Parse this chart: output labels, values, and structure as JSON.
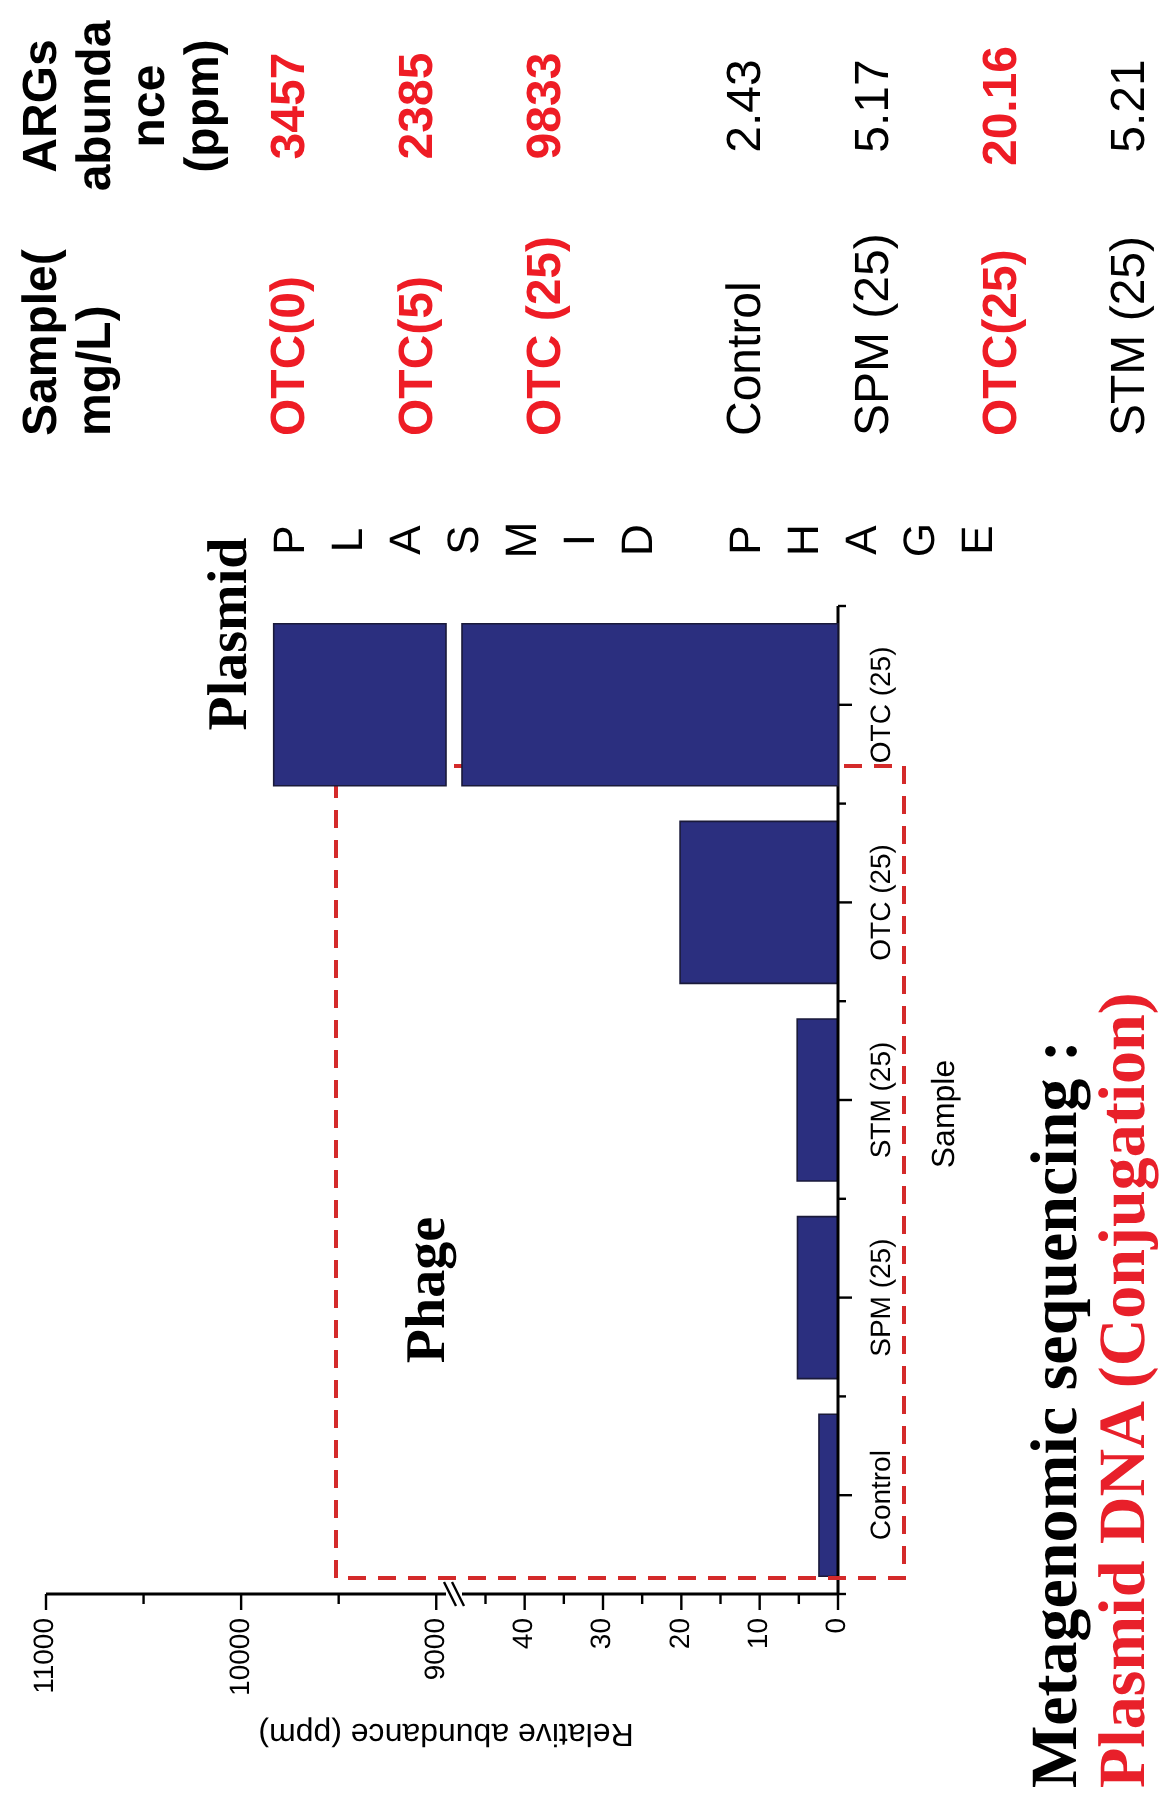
{
  "chart_data": [
    {
      "type": "bar",
      "orientation": "horizontal",
      "ylabel": "Sample",
      "xlabel": "Relative abundance (ppm)",
      "categories": [
        "OTC (25)",
        "OTC (25)",
        "STM (25)",
        "SPM (25)",
        "Control"
      ],
      "values": [
        null,
        20.16,
        5.21,
        5.17,
        2.43
      ],
      "color": "#2b2f7f",
      "xlim": [
        48,
        0
      ],
      "xticks": [
        {
          "value": 45,
          "label": null
        },
        40,
        {
          "value": 35,
          "label": null
        },
        30,
        {
          "value": 25,
          "label": null
        },
        20,
        {
          "value": 15,
          "label": null
        },
        10,
        {
          "value": 5,
          "label": null
        },
        0
      ],
      "annotations": [
        "Phage"
      ]
    },
    {
      "type": "bar",
      "orientation": "horizontal",
      "categories": [
        null,
        null,
        null,
        null,
        null
      ],
      "values": [
        9833,
        null,
        null,
        null,
        null
      ],
      "color": "#2b2f7f",
      "xlim": [
        11000,
        8950
      ],
      "xticks": [
        11000,
        {
          "value": 10500,
          "label": null
        },
        10000,
        {
          "value": 9500,
          "label": null
        },
        9000
      ],
      "tick_labels": "x",
      "annotations": [
        "Plasmid"
      ]
    },
    {
      "type": "other",
      "annotations": [
        "Sample(mg/L)",
        "ARGs abundance (ppm)",
        {
          "text": "PLASMID",
          "y": "OTC(0)"
        },
        {
          "text": "PHAGE",
          "y": "Control"
        }
      ],
      "categories": [
        "OTC(0)",
        "OTC(5)",
        "OTC (25)",
        "Control",
        "SPM (25)",
        "OTC(25)",
        "STM (25)"
      ],
      "values": [
        3457,
        2385,
        9833,
        2.43,
        5.17,
        20.16,
        5.21
      ],
      "colors": [
        "#ee1c25",
        "#ee1c25",
        "#ee1c25",
        "#000000",
        "#000000",
        "#ee1c25",
        "#000000"
      ],
      "data_labels": true
    },
    {
      "type": "other",
      "title": "Metagenomic sequencing :",
      "subtitle": "Plasmid DNA (Conjugation)"
    }
  ]
}
